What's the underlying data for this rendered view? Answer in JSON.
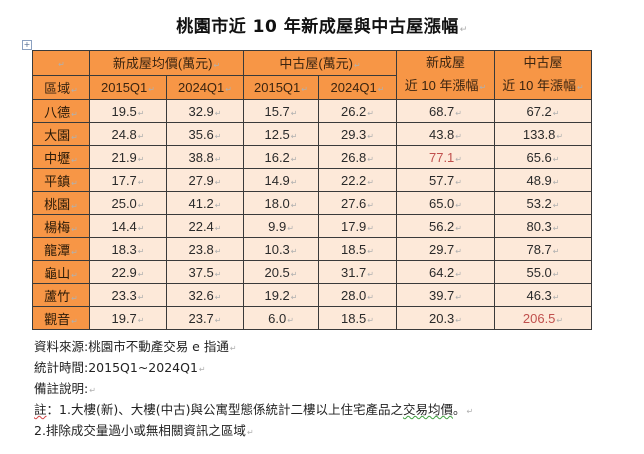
{
  "title": "桃園市近 10 年新成屋與中古屋漲幅",
  "table": {
    "header_row1": {
      "blank": "",
      "new_house_price": "新成屋均價(萬元)",
      "used_house_price": "中古屋(萬元)",
      "new_house_growth_line1": "新成屋",
      "used_house_growth_line1": "中古屋"
    },
    "header_row2": {
      "area": "區域",
      "new_2015": "2015Q1",
      "new_2024": "2024Q1",
      "used_2015": "2015Q1",
      "used_2024": "2024Q1",
      "new_growth_line2": "近 10 年漲幅",
      "used_growth_line2": "近 10 年漲幅"
    },
    "rows": [
      {
        "area": "八德",
        "new_2015": "19.5",
        "new_2024": "32.9",
        "used_2015": "15.7",
        "used_2024": "26.2",
        "new_growth": "68.7",
        "used_growth": "67.2"
      },
      {
        "area": "大園",
        "new_2015": "24.8",
        "new_2024": "35.6",
        "used_2015": "12.5",
        "used_2024": "29.3",
        "new_growth": "43.8",
        "used_growth": "133.8"
      },
      {
        "area": "中壢",
        "new_2015": "21.9",
        "new_2024": "38.8",
        "used_2015": "16.2",
        "used_2024": "26.8",
        "new_growth": "77.1",
        "used_growth": "65.6"
      },
      {
        "area": "平鎮",
        "new_2015": "17.7",
        "new_2024": "27.9",
        "used_2015": "14.9",
        "used_2024": "22.2",
        "new_growth": "57.7",
        "used_growth": "48.9"
      },
      {
        "area": "桃園",
        "new_2015": "25.0",
        "new_2024": "41.2",
        "used_2015": "18.0",
        "used_2024": "27.6",
        "new_growth": "65.0",
        "used_growth": "53.2"
      },
      {
        "area": "楊梅",
        "new_2015": "14.4",
        "new_2024": "22.4",
        "used_2015": "9.9",
        "used_2024": "17.9",
        "new_growth": "56.2",
        "used_growth": "80.3"
      },
      {
        "area": "龍潭",
        "new_2015": "18.3",
        "new_2024": "23.8",
        "used_2015": "10.3",
        "used_2024": "18.5",
        "new_growth": "29.7",
        "used_growth": "78.7"
      },
      {
        "area": "龜山",
        "new_2015": "22.9",
        "new_2024": "37.5",
        "used_2015": "20.5",
        "used_2024": "31.7",
        "new_growth": "64.2",
        "used_growth": "55.0"
      },
      {
        "area": "蘆竹",
        "new_2015": "23.3",
        "new_2024": "32.6",
        "used_2015": "19.2",
        "used_2024": "28.0",
        "new_growth": "39.7",
        "used_growth": "46.3"
      },
      {
        "area": "觀音",
        "new_2015": "19.7",
        "new_2024": "23.7",
        "used_2015": "6.0",
        "used_2024": "18.5",
        "new_growth": "20.3",
        "used_growth": "206.5"
      }
    ],
    "highlight": {
      "max_new_growth": {
        "area": "中壢",
        "value": "77.1"
      },
      "max_used_growth": {
        "area": "觀音",
        "value": "206.5"
      }
    }
  },
  "notes": {
    "source": "資料來源:桃園市不動產交易 e 指通",
    "period": "統計時間:2015Q1~2024Q1",
    "remark_heading": "備註說明:",
    "note1_prefix": "註",
    "note1_body": "：1.大樓(新)、大樓(中古)與公寓型態係統計二樓以上住宅產品之",
    "note1_squiggle": "交易均價",
    "note1_end": "。",
    "note2": "2.排除成交量過小或無相關資訊之區域"
  },
  "colors": {
    "header_orange": "#F79646",
    "cell_light": "#FDE9D9",
    "highlight_red": "#C0504D",
    "border": "#3a3a3a"
  }
}
